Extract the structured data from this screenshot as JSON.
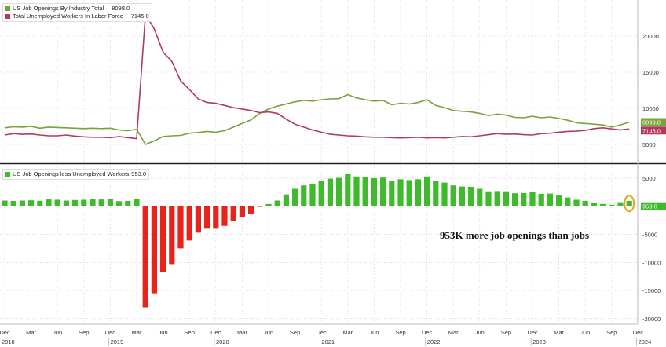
{
  "chart_data": [
    {
      "type": "line",
      "x_dates": [
        "2018-12",
        "2019-01",
        "2019-02",
        "2019-03",
        "2019-04",
        "2019-05",
        "2019-06",
        "2019-07",
        "2019-08",
        "2019-09",
        "2019-10",
        "2019-11",
        "2019-12",
        "2020-01",
        "2020-02",
        "2020-03",
        "2020-04",
        "2020-05",
        "2020-06",
        "2020-07",
        "2020-08",
        "2020-09",
        "2020-10",
        "2020-11",
        "2020-12",
        "2021-01",
        "2021-02",
        "2021-03",
        "2021-04",
        "2021-05",
        "2021-06",
        "2021-07",
        "2021-08",
        "2021-09",
        "2021-10",
        "2021-11",
        "2021-12",
        "2022-01",
        "2022-02",
        "2022-03",
        "2022-04",
        "2022-05",
        "2022-06",
        "2022-07",
        "2022-08",
        "2022-09",
        "2022-10",
        "2022-11",
        "2022-12",
        "2023-01",
        "2023-02",
        "2023-03",
        "2023-04",
        "2023-05",
        "2023-06",
        "2023-07",
        "2023-08",
        "2023-09",
        "2023-10",
        "2023-11",
        "2023-12",
        "2024-01",
        "2024-02",
        "2024-03",
        "2024-04",
        "2024-05",
        "2024-06",
        "2024-07",
        "2024-08",
        "2024-09",
        "2024-10",
        "2024-11"
      ],
      "series": [
        {
          "name": "US Job Openings By Industry Total",
          "last_value": "8098.0",
          "color": "#7aa23a",
          "values": [
            7300,
            7450,
            7400,
            7500,
            7250,
            7400,
            7350,
            7300,
            7250,
            7200,
            7250,
            7200,
            7250,
            7000,
            6900,
            7100,
            5000,
            5500,
            6100,
            6200,
            6250,
            6550,
            6650,
            6800,
            6700,
            6900,
            7400,
            7900,
            8400,
            9300,
            9900,
            10300,
            10600,
            10900,
            11100,
            11000,
            11200,
            11300,
            11350,
            11900,
            11450,
            11200,
            11000,
            11100,
            10500,
            10700,
            10600,
            10800,
            11200,
            10400,
            10100,
            9700,
            9600,
            9500,
            9300,
            9000,
            9200,
            9050,
            8750,
            8700,
            8900,
            8700,
            8800,
            8600,
            8350,
            8000,
            7900,
            7800,
            7700,
            7400,
            7700,
            8098
          ]
        },
        {
          "name": "Total Unemployed Workers In Labor Force",
          "last_value": "7145.0",
          "color": "#b23a5c",
          "values": [
            6300,
            6500,
            6400,
            6450,
            6300,
            6200,
            6200,
            6300,
            6150,
            6050,
            6000,
            6000,
            5950,
            6100,
            5950,
            5800,
            23000,
            21000,
            17800,
            16500,
            13800,
            12600,
            11300,
            10800,
            10700,
            10400,
            10100,
            9900,
            9700,
            9400,
            9500,
            9300,
            8500,
            7800,
            7400,
            7000,
            6700,
            6400,
            6300,
            6200,
            6150,
            6050,
            6000,
            6000,
            5950,
            5900,
            5950,
            6000,
            5900,
            5950,
            5900,
            6000,
            6100,
            6050,
            6200,
            6350,
            6500,
            6400,
            6450,
            6350,
            6300,
            6500,
            6550,
            6700,
            6800,
            6850,
            6950,
            7200,
            7300,
            7150,
            7000,
            7145
          ]
        }
      ],
      "ylim": [
        2500,
        25000
      ],
      "y_ticks": [
        5000,
        10000,
        15000,
        20000
      ],
      "y_tick_labels": [
        "5000",
        "10000",
        "15000",
        "20000"
      ],
      "grid": true,
      "legend": "top-left"
    },
    {
      "type": "bar",
      "x_dates": [
        "2018-12",
        "2019-01",
        "2019-02",
        "2019-03",
        "2019-04",
        "2019-05",
        "2019-06",
        "2019-07",
        "2019-08",
        "2019-09",
        "2019-10",
        "2019-11",
        "2019-12",
        "2020-01",
        "2020-02",
        "2020-03",
        "2020-04",
        "2020-05",
        "2020-06",
        "2020-07",
        "2020-08",
        "2020-09",
        "2020-10",
        "2020-11",
        "2020-12",
        "2021-01",
        "2021-02",
        "2021-03",
        "2021-04",
        "2021-05",
        "2021-06",
        "2021-07",
        "2021-08",
        "2021-09",
        "2021-10",
        "2021-11",
        "2021-12",
        "2022-01",
        "2022-02",
        "2022-03",
        "2022-04",
        "2022-05",
        "2022-06",
        "2022-07",
        "2022-08",
        "2022-09",
        "2022-10",
        "2022-11",
        "2022-12",
        "2023-01",
        "2023-02",
        "2023-03",
        "2023-04",
        "2023-05",
        "2023-06",
        "2023-07",
        "2023-08",
        "2023-09",
        "2023-10",
        "2023-11",
        "2023-12",
        "2024-01",
        "2024-02",
        "2024-03",
        "2024-04",
        "2024-05",
        "2024-06",
        "2024-07",
        "2024-08",
        "2024-09",
        "2024-10",
        "2024-11"
      ],
      "series": [
        {
          "name": "US Job Openings less Unemployed Workers",
          "last_value": "953.0",
          "positive_color": "#3dbb2a",
          "negative_color": "#e8231b",
          "values": [
            1000,
            950,
            1000,
            1050,
            950,
            1200,
            1150,
            1000,
            1100,
            1150,
            1250,
            1200,
            1300,
            900,
            950,
            1300,
            -18000,
            -15500,
            -11700,
            -10300,
            -7500,
            -6100,
            -4700,
            -4000,
            -4000,
            -3500,
            -2700,
            -2000,
            -1300,
            -100,
            400,
            1000,
            2100,
            3100,
            3700,
            4000,
            4500,
            4900,
            5050,
            5700,
            5300,
            5150,
            5000,
            5100,
            4550,
            4800,
            4650,
            4800,
            5300,
            4450,
            4200,
            3700,
            3500,
            3450,
            3100,
            2650,
            2700,
            2650,
            2300,
            2350,
            2600,
            2200,
            2250,
            1900,
            1550,
            1150,
            950,
            600,
            400,
            250,
            700,
            953
          ]
        }
      ],
      "ylim": [
        -21000,
        7500
      ],
      "y_ticks": [
        -20000,
        -15000,
        -10000,
        -5000,
        0,
        5000
      ],
      "y_tick_labels": [
        "-20000",
        "-15000",
        "-10000",
        "-5000",
        "0",
        "5000"
      ],
      "annotation": "953K more job openings than jobs",
      "grid": true,
      "legend": "top-left"
    }
  ],
  "x_axis": {
    "months": [
      "Dec",
      "Mar",
      "Jun",
      "Sep",
      "Dec",
      "Mar",
      "Jun",
      "Sep",
      "Dec",
      "Mar",
      "Jun",
      "Sep",
      "Dec",
      "Mar",
      "Jun",
      "Sep",
      "Dec",
      "Mar",
      "Jun",
      "Sep",
      "Dec",
      "Mar",
      "Jun",
      "Sep",
      "Dec"
    ],
    "years": [
      "2018",
      "2019",
      "2020",
      "2021",
      "2022",
      "2023",
      "2024"
    ]
  }
}
